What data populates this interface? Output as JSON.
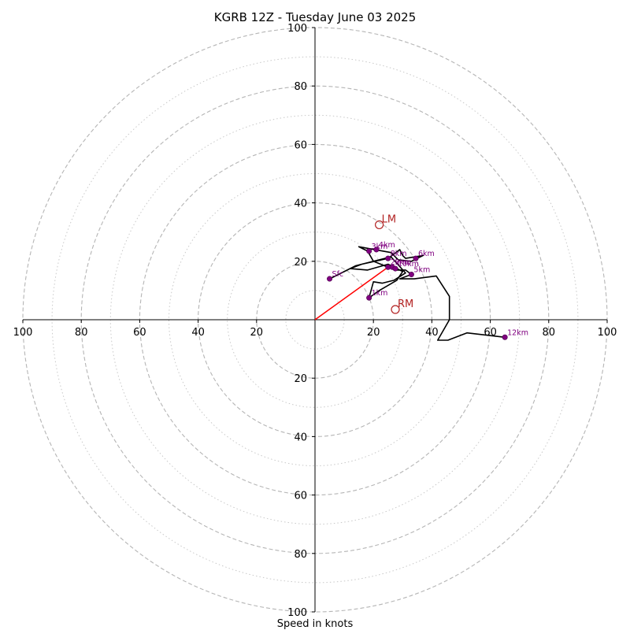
{
  "chart_data": {
    "type": "hodograph",
    "title": "KGRB 12Z - Tuesday June 03 2025",
    "xlabel": "Speed in knots",
    "ylabel": "",
    "range": [
      -100,
      100
    ],
    "rings_major": [
      20,
      40,
      60,
      80,
      100
    ],
    "rings_minor": [
      10,
      30,
      50,
      70,
      90
    ],
    "x_ticks": [
      "100",
      "80",
      "60",
      "40",
      "20",
      "20",
      "40",
      "60",
      "80",
      "100"
    ],
    "x_tick_values": [
      -100,
      -80,
      -60,
      -40,
      -20,
      20,
      40,
      60,
      80,
      100
    ],
    "y_ticks": [
      "100",
      "80",
      "60",
      "40",
      "20",
      "20",
      "40",
      "60",
      "80",
      "100"
    ],
    "y_tick_values": [
      100,
      80,
      60,
      40,
      20,
      -20,
      -40,
      -60,
      -80,
      -100
    ],
    "trace": {
      "color": "#000000",
      "points": [
        [
          5,
          14
        ],
        [
          14,
          18.5
        ],
        [
          26,
          21.5
        ],
        [
          31,
          16
        ],
        [
          27,
          13.5
        ],
        [
          23,
          12.5
        ],
        [
          20,
          13
        ],
        [
          18.5,
          7.5
        ],
        [
          22,
          10
        ],
        [
          28,
          13.5
        ],
        [
          30,
          16.5
        ],
        [
          25,
          19
        ],
        [
          18,
          17
        ],
        [
          12,
          17.5
        ],
        [
          16,
          19
        ],
        [
          25,
          21
        ],
        [
          29,
          24
        ],
        [
          30,
          22
        ],
        [
          31,
          21
        ],
        [
          37,
          22
        ],
        [
          33,
          20
        ],
        [
          28.5,
          20.5
        ],
        [
          26,
          23
        ],
        [
          15,
          25
        ],
        [
          17,
          24
        ],
        [
          18,
          23.5
        ],
        [
          20,
          20
        ],
        [
          25,
          18
        ],
        [
          28,
          17
        ],
        [
          31,
          17
        ],
        [
          33,
          15.5
        ],
        [
          29,
          14
        ],
        [
          34,
          14
        ],
        [
          41.5,
          15
        ],
        [
          46,
          8
        ],
        [
          46,
          0
        ],
        [
          42,
          -7
        ],
        [
          45.5,
          -7
        ],
        [
          52,
          -4.5
        ],
        [
          65,
          -6
        ]
      ]
    },
    "height_markers": [
      {
        "label": "Sfc",
        "u": 5,
        "v": 14
      },
      {
        "label": "1km",
        "u": 18.5,
        "v": 7.5
      },
      {
        "label": "2km",
        "u": 25,
        "v": 18
      },
      {
        "label": "3km",
        "u": 18.5,
        "v": 23.5
      },
      {
        "label": "4km",
        "u": 21,
        "v": 24
      },
      {
        "label": "5km",
        "u": 33,
        "v": 15.5
      },
      {
        "label": "6km",
        "u": 34.5,
        "v": 21
      },
      {
        "label": "8km",
        "u": 25,
        "v": 21
      },
      {
        "label": "9km",
        "u": 26.5,
        "v": 18
      },
      {
        "label": "10km",
        "u": 27.5,
        "v": 17.5
      },
      {
        "label": "12km",
        "u": 65,
        "v": -6
      }
    ],
    "storm_motion": {
      "color": "#b22222",
      "right_mover": {
        "label": "RM",
        "u": 27.5,
        "v": 3.5
      },
      "left_mover": {
        "label": "LM",
        "u": 22,
        "v": 32.5
      },
      "mean_wind": {
        "u": 25,
        "v": 18
      },
      "vector": [
        [
          0,
          0
        ],
        [
          25,
          18
        ]
      ]
    },
    "grid": true
  }
}
